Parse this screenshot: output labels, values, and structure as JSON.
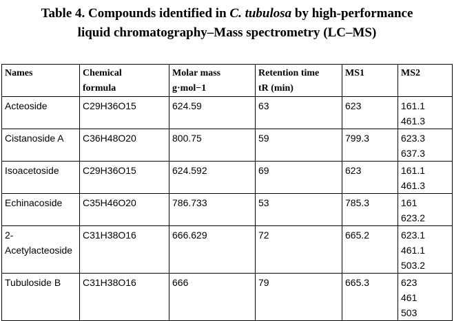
{
  "caption": {
    "line1_prefix": "Table 4. Compounds identified in ",
    "line1_species": "C. tubulosa",
    "line1_suffix": " by high-performance",
    "line2": "liquid chromatography–Mass spectrometry (LC–MS)"
  },
  "table": {
    "headers": [
      [
        "Names"
      ],
      [
        "Chemical",
        "formula"
      ],
      [
        "Molar mass",
        "g·mol−1"
      ],
      [
        "Retention time",
        "tR (min)"
      ],
      [
        "MS1"
      ],
      [
        "MS2"
      ]
    ],
    "rows": [
      {
        "name": [
          "Acteoside"
        ],
        "formula": "C29H36O15",
        "molar_mass": "624.59",
        "retention_time": "63",
        "ms1": "623",
        "ms2": [
          "161.1",
          "461.3"
        ]
      },
      {
        "name": [
          "Cistanoside A"
        ],
        "formula": "C36H48O20",
        "molar_mass": "800.75",
        "retention_time": "59",
        "ms1": "799.3",
        "ms2": [
          "623.3",
          "637.3"
        ]
      },
      {
        "name": [
          "Isoacetoside"
        ],
        "formula": "C29H36O15",
        "molar_mass": "624.592",
        "retention_time": "69",
        "ms1": "623",
        "ms2": [
          "161.1",
          "461.3"
        ]
      },
      {
        "name": [
          "Echinacoside"
        ],
        "formula": "C35H46O20",
        "molar_mass": "786.733",
        "retention_time": "53",
        "ms1": "785.3",
        "ms2": [
          "161",
          "623.2"
        ]
      },
      {
        "name": [
          "2-",
          "Acetylacteoside"
        ],
        "formula": "C31H38O16",
        "molar_mass": "666.629",
        "retention_time": "72",
        "ms1": "665.2",
        "ms2": [
          "623.1",
          "461.1",
          "503.2"
        ]
      },
      {
        "name": [
          "Tubuloside B"
        ],
        "formula": "C31H38O16",
        "molar_mass": "666",
        "retention_time": "79",
        "ms1": "665.3",
        "ms2": [
          "623",
          "461",
          "503"
        ]
      }
    ]
  }
}
